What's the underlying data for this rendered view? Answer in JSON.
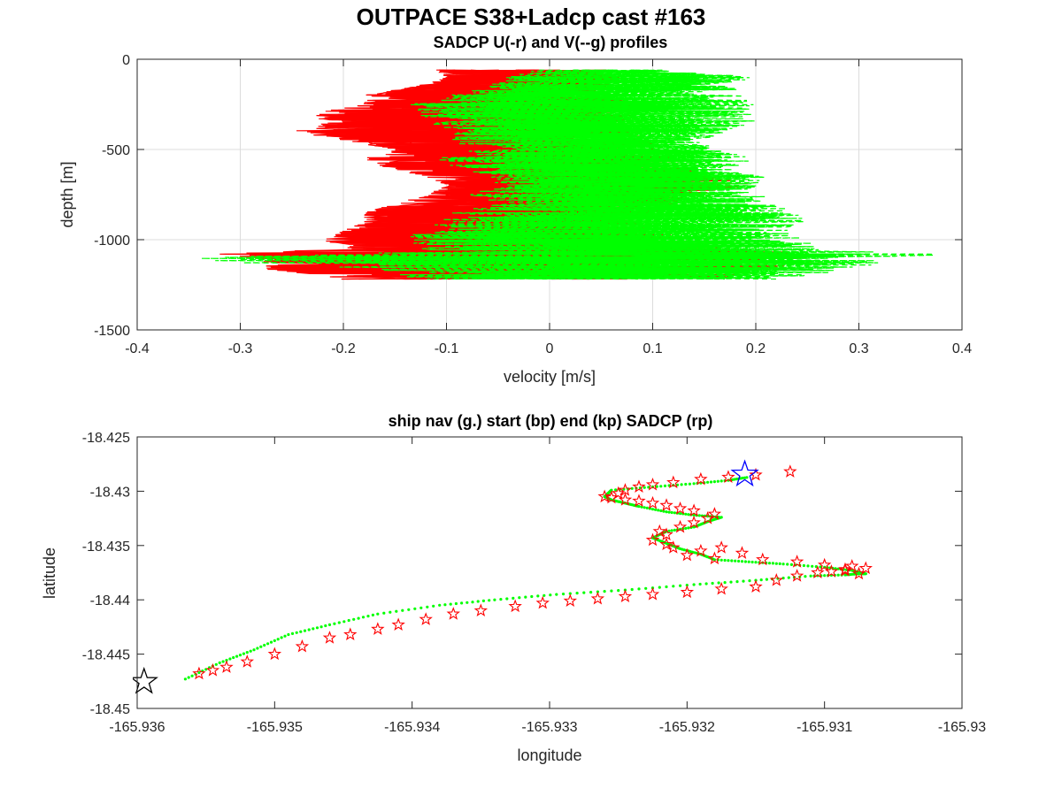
{
  "figure_title": "OUTPACE S38+Ladcp cast #163",
  "chart_data": [
    {
      "type": "line",
      "title": "SADCP U(-r) and V(--g) profiles",
      "xlabel": "velocity [m/s]",
      "ylabel": "depth [m]",
      "xlim": [
        -0.4,
        0.4
      ],
      "ylim": [
        -1500,
        0
      ],
      "xticks": [
        -0.4,
        -0.3,
        -0.2,
        -0.1,
        0,
        0.1,
        0.2,
        0.3,
        0.4
      ],
      "xtick_labels": [
        "-0.4",
        "-0.3",
        "-0.2",
        "-0.1",
        "0",
        "0.1",
        "0.2",
        "0.3",
        "0.4"
      ],
      "yticks": [
        -1500,
        -1000,
        -500,
        0
      ],
      "ytick_labels": [
        "-1500",
        "-1000",
        "-500",
        "0"
      ],
      "grid": true,
      "series": [
        {
          "style": "solid",
          "color": "#ff0000",
          "envelope": {
            "depth": [
              -60,
              -100,
              -150,
              -200,
              -250,
              -300,
              -350,
              -400,
              -450,
              -500,
              -550,
              -600,
              -650,
              -700,
              -750,
              -800,
              -850,
              -900,
              -950,
              -1000,
              -1050,
              -1080,
              -1100,
              -1130,
              -1160,
              -1200,
              -1220
            ],
            "min": [
              -0.11,
              -0.1,
              -0.13,
              -0.18,
              -0.18,
              -0.23,
              -0.22,
              -0.25,
              -0.2,
              -0.15,
              -0.18,
              -0.16,
              -0.12,
              -0.1,
              -0.12,
              -0.15,
              -0.18,
              -0.18,
              -0.2,
              -0.22,
              -0.2,
              -0.32,
              -0.3,
              -0.27,
              -0.28,
              -0.22,
              -0.2
            ],
            "max": [
              0.06,
              0.08,
              0.06,
              0.08,
              0.1,
              0.1,
              0.08,
              0.09,
              0.1,
              0.12,
              0.13,
              0.14,
              0.17,
              0.2,
              0.14,
              0.12,
              0.11,
              0.1,
              0.12,
              0.14,
              0.18,
              0.28,
              0.25,
              0.28,
              0.22,
              0.2,
              0.18
            ]
          }
        },
        {
          "style": "dashed",
          "color": "#00ff00",
          "envelope": {
            "depth": [
              -60,
              -100,
              -150,
              -200,
              -250,
              -300,
              -350,
              -400,
              -450,
              -500,
              -550,
              -600,
              -650,
              -700,
              -750,
              -800,
              -850,
              -900,
              -950,
              -1000,
              -1050,
              -1080,
              -1100,
              -1130,
              -1160,
              -1200,
              -1220
            ],
            "min": [
              -0.02,
              -0.05,
              -0.06,
              -0.1,
              -0.14,
              -0.13,
              -0.12,
              -0.1,
              -0.1,
              -0.08,
              -0.12,
              -0.1,
              -0.06,
              -0.05,
              -0.08,
              -0.05,
              -0.1,
              -0.12,
              -0.12,
              -0.15,
              -0.14,
              -0.22,
              -0.37,
              -0.3,
              -0.2,
              -0.15,
              -0.12
            ],
            "max": [
              0.12,
              0.2,
              0.18,
              0.19,
              0.2,
              0.2,
              0.2,
              0.18,
              0.15,
              0.16,
              0.2,
              0.18,
              0.21,
              0.2,
              0.21,
              0.22,
              0.24,
              0.25,
              0.23,
              0.25,
              0.26,
              0.39,
              0.35,
              0.33,
              0.3,
              0.25,
              0.24
            ]
          }
        }
      ]
    },
    {
      "type": "scatter",
      "title": "ship nav (g.) start (bp) end (kp) SADCP (rp)",
      "xlabel": "longitude",
      "ylabel": "latitude",
      "xlim": [
        -165.936,
        -165.93
      ],
      "ylim": [
        -18.45,
        -18.425
      ],
      "xticks": [
        -165.936,
        -165.935,
        -165.934,
        -165.933,
        -165.932,
        -165.931,
        -165.93
      ],
      "xtick_labels": [
        "-165.936",
        "-165.935",
        "-165.934",
        "-165.933",
        "-165.932",
        "-165.931",
        "-165.93"
      ],
      "yticks": [
        -18.45,
        -18.445,
        -18.44,
        -18.435,
        -18.43,
        -18.425
      ],
      "ytick_labels": [
        "-18.45",
        "-18.445",
        "-18.44",
        "-18.435",
        "-18.43",
        "-18.425"
      ],
      "grid": false,
      "nav_color": "#00ff00",
      "sadcp_color": "#ff0000",
      "start_color": "#0000ff",
      "end_color": "#000000",
      "nav_track": {
        "lon": [
          -165.93565,
          -165.9354,
          -165.93515,
          -165.9349,
          -165.9346,
          -165.93425,
          -165.9338,
          -165.9334,
          -165.93295,
          -165.93245,
          -165.93195,
          -165.9315,
          -165.9311,
          -165.93085,
          -165.93075,
          -165.9307,
          -165.9308,
          -165.931,
          -165.9313,
          -165.93155,
          -165.9318,
          -165.9319,
          -165.93205,
          -165.93215,
          -165.93225,
          -165.93215,
          -165.93195,
          -165.93185,
          -165.93175,
          -165.93195,
          -165.93215,
          -165.93235,
          -165.93245,
          -165.93255,
          -165.9326,
          -165.93255,
          -165.93225,
          -165.93195,
          -165.9317,
          -165.93155
        ],
        "lat": [
          -18.4473,
          -18.4458,
          -18.4446,
          -18.4432,
          -18.4423,
          -18.4413,
          -18.4405,
          -18.44,
          -18.4395,
          -18.4391,
          -18.4386,
          -18.4382,
          -18.4378,
          -18.4377,
          -18.4376,
          -18.4376,
          -18.4373,
          -18.437,
          -18.4367,
          -18.4365,
          -18.4363,
          -18.4358,
          -18.4353,
          -18.4348,
          -18.4343,
          -18.4337,
          -18.4333,
          -18.4328,
          -18.4324,
          -18.4322,
          -18.4319,
          -18.4314,
          -18.4311,
          -18.4308,
          -18.4305,
          -18.4299,
          -18.4296,
          -18.4293,
          -18.429,
          -18.4287
        ]
      },
      "sadcp_points": {
        "lon": [
          -165.93555,
          -165.93545,
          -165.93535,
          -165.9352,
          -165.935,
          -165.9348,
          -165.9346,
          -165.93445,
          -165.93425,
          -165.9341,
          -165.9339,
          -165.9337,
          -165.9335,
          -165.93325,
          -165.93305,
          -165.93285,
          -165.93265,
          -165.93245,
          -165.93225,
          -165.932,
          -165.93175,
          -165.9315,
          -165.93135,
          -165.9312,
          -165.93105,
          -165.93095,
          -165.93085,
          -165.93075,
          -165.9307,
          -165.9308,
          -165.93085,
          -165.931,
          -165.9312,
          -165.93145,
          -165.9316,
          -165.93175,
          -165.9318,
          -165.9319,
          -165.932,
          -165.9321,
          -165.93215,
          -165.93225,
          -165.93215,
          -165.9322,
          -165.93205,
          -165.93195,
          -165.93185,
          -165.9318,
          -165.93195,
          -165.93205,
          -165.93215,
          -165.93225,
          -165.93235,
          -165.93245,
          -165.93255,
          -165.9326,
          -165.9325,
          -165.93245,
          -165.93235,
          -165.93225,
          -165.9321,
          -165.9319,
          -165.9317,
          -165.9315,
          -165.93125
        ],
        "lat": [
          -18.4468,
          -18.4465,
          -18.4462,
          -18.4457,
          -18.445,
          -18.4443,
          -18.4435,
          -18.4432,
          -18.4427,
          -18.4423,
          -18.4418,
          -18.4413,
          -18.441,
          -18.4406,
          -18.4403,
          -18.4401,
          -18.4399,
          -18.4397,
          -18.4395,
          -18.4393,
          -18.439,
          -18.4388,
          -18.4382,
          -18.4378,
          -18.4375,
          -18.4374,
          -18.4372,
          -18.4376,
          -18.4371,
          -18.4369,
          -18.4373,
          -18.4368,
          -18.4365,
          -18.4363,
          -18.4357,
          -18.4352,
          -18.4362,
          -18.4355,
          -18.4359,
          -18.4352,
          -18.4349,
          -18.4345,
          -18.434,
          -18.4337,
          -18.4333,
          -18.4329,
          -18.4325,
          -18.4321,
          -18.4318,
          -18.4316,
          -18.4313,
          -18.4311,
          -18.4309,
          -18.4308,
          -18.4306,
          -18.4305,
          -18.4302,
          -18.4299,
          -18.4296,
          -18.4294,
          -18.4292,
          -18.4289,
          -18.4287,
          -18.4285,
          -18.4282
        ]
      },
      "start_point": {
        "lon": -165.93158,
        "lat": -18.42845
      },
      "end_point": {
        "lon": -165.93595,
        "lat": -18.44755
      }
    }
  ]
}
